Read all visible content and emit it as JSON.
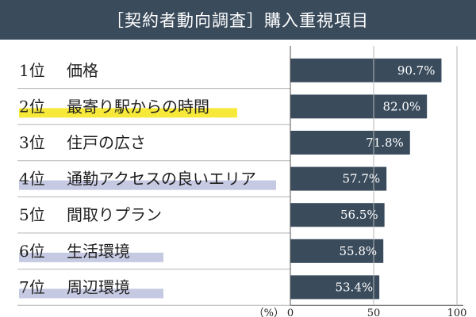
{
  "header": {
    "title": "［契約者動向調査］購入重視項目"
  },
  "colors": {
    "bar": "#3a4b5c",
    "highlight_yellow": "#f7e93a",
    "highlight_lavender": "#c5c9e2",
    "divider": "#b5b5b5"
  },
  "chart_data": {
    "type": "bar",
    "orientation": "horizontal",
    "title": "［契約者動向調査］購入重視項目",
    "unit_label": "（%）",
    "xlim": [
      0,
      100
    ],
    "xticks": [
      0,
      50,
      100
    ],
    "grid": false,
    "categories": [
      {
        "rank": "1位",
        "label": "価格",
        "value": 90.7,
        "value_label": "90.7%",
        "highlight": "none"
      },
      {
        "rank": "2位",
        "label": "最寄り駅からの時間",
        "value": 82.0,
        "value_label": "82.0%",
        "highlight": "yellow"
      },
      {
        "rank": "3位",
        "label": "住戸の広さ",
        "value": 71.8,
        "value_label": "71.8%",
        "highlight": "none"
      },
      {
        "rank": "4位",
        "label": "通勤アクセスの良いエリア",
        "value": 57.7,
        "value_label": "57.7%",
        "highlight": "lavender"
      },
      {
        "rank": "5位",
        "label": "間取りプラン",
        "value": 56.5,
        "value_label": "56.5%",
        "highlight": "none"
      },
      {
        "rank": "6位",
        "label": "生活環境",
        "value": 55.8,
        "value_label": "55.8%",
        "highlight": "lavender"
      },
      {
        "rank": "7位",
        "label": "周辺環境",
        "value": 53.4,
        "value_label": "53.4%",
        "highlight": "lavender"
      }
    ]
  }
}
